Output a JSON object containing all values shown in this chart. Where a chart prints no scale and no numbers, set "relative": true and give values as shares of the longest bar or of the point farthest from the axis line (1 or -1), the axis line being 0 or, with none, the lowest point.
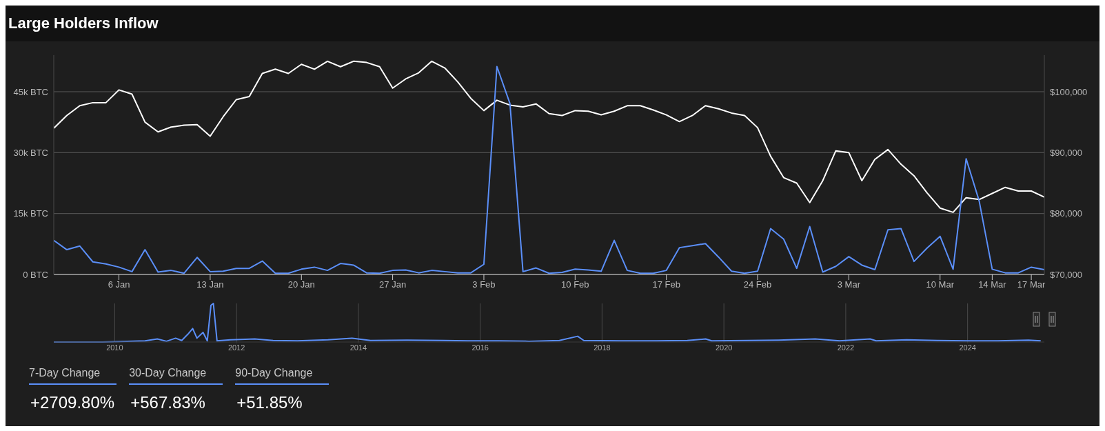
{
  "chart_data": [
    {
      "type": "line",
      "title": "Large Holders Inflow",
      "x": [
        "--01-01",
        "--01-02",
        "--01-03",
        "--01-04",
        "--01-05",
        "--01-06",
        "--01-07",
        "--01-08",
        "--01-09",
        "--01-10",
        "--01-11",
        "--01-12",
        "--01-13",
        "--01-14",
        "--01-15",
        "--01-16",
        "--01-17",
        "--01-18",
        "--01-19",
        "--01-20",
        "--01-21",
        "--01-22",
        "--01-23",
        "--01-24",
        "--01-25",
        "--01-26",
        "--01-27",
        "--01-28",
        "--01-29",
        "--01-30",
        "--01-31",
        "--02-01",
        "--02-02",
        "--02-03",
        "--02-04",
        "--02-05",
        "--02-06",
        "--02-07",
        "--02-08",
        "--02-09",
        "--02-10",
        "--02-11",
        "--02-12",
        "--02-13",
        "--02-14",
        "--02-15",
        "--02-16",
        "--02-17",
        "--02-18",
        "--02-19",
        "--02-20",
        "--02-21",
        "--02-22",
        "--02-23",
        "--02-24",
        "--02-25",
        "--02-26",
        "--02-27",
        "--02-28",
        "--03-01",
        "--03-02",
        "--03-03",
        "--03-04",
        "--03-05",
        "--03-06",
        "--03-07",
        "--03-08",
        "--03-09",
        "--03-10",
        "--03-11",
        "--03-12",
        "--03-13",
        "--03-14",
        "--03-15",
        "--03-16",
        "--03-17",
        "--03-18"
      ],
      "series": [
        {
          "color": "#ffffff",
          "axis": "y2",
          "values": [
            94000,
            96100,
            97700,
            98200,
            98200,
            100300,
            99600,
            95000,
            93400,
            94200,
            94500,
            94600,
            92700,
            95900,
            98700,
            99200,
            103000,
            103700,
            103000,
            104500,
            103700,
            105000,
            104100,
            105000,
            104800,
            104100,
            100600,
            102100,
            103100,
            105000,
            103900,
            101600,
            98900,
            96900,
            98600,
            97800,
            97500,
            98000,
            96400,
            96100,
            96900,
            96800,
            96200,
            96800,
            97700,
            97700,
            97000,
            96200,
            95100,
            96100,
            97700,
            97200,
            96500,
            96100,
            94100,
            89400,
            85900,
            85000,
            81800,
            85400,
            90300,
            90000,
            85400,
            88900,
            90500,
            88100,
            86200,
            83400,
            80900,
            80200,
            82600,
            82300,
            83300,
            84300,
            83700,
            83700,
            82700
          ]
        },
        {
          "color": "#5b8ff9",
          "values": [
            8400,
            6100,
            7000,
            3100,
            2600,
            1800,
            700,
            6100,
            600,
            1000,
            300,
            4200,
            700,
            800,
            1500,
            1500,
            3300,
            300,
            300,
            1300,
            1800,
            1000,
            2700,
            2300,
            400,
            300,
            1000,
            1100,
            400,
            1000,
            700,
            400,
            400,
            2500,
            51200,
            42100,
            700,
            1600,
            300,
            500,
            1300,
            1100,
            800,
            8400,
            1000,
            300,
            300,
            1000,
            6600,
            7100,
            7600,
            4300,
            800,
            300,
            800,
            11300,
            8700,
            1500,
            11800,
            600,
            2000,
            4400,
            2300,
            1200,
            11000,
            11300,
            3200,
            6500,
            9400,
            1300,
            28500,
            18100,
            1300,
            400,
            400,
            1800,
            1200
          ]
        }
      ],
      "xlim": [
        "--01-01",
        "--03-18"
      ],
      "xticks": [
        {
          "value": "--01-06",
          "label": "6 Jan"
        },
        {
          "value": "--01-13",
          "label": "13 Jan"
        },
        {
          "value": "--01-20",
          "label": "20 Jan"
        },
        {
          "value": "--01-27",
          "label": "27 Jan"
        },
        {
          "value": "--02-03",
          "label": "3 Feb"
        },
        {
          "value": "--02-10",
          "label": "10 Feb"
        },
        {
          "value": "--02-17",
          "label": "17 Feb"
        },
        {
          "value": "--02-24",
          "label": "24 Feb"
        },
        {
          "value": "--03-03",
          "label": "3 Mar"
        },
        {
          "value": "--03-10",
          "label": "10 Mar"
        },
        {
          "value": "--03-14",
          "label": "14 Mar"
        },
        {
          "value": "--03-17",
          "label": "17 Mar"
        }
      ],
      "ylim": [
        0,
        54000
      ],
      "yticks": [
        {
          "value": 0,
          "label": "0 BTC"
        },
        {
          "value": 15000,
          "label": "15k BTC"
        },
        {
          "value": 30000,
          "label": "30k BTC"
        },
        {
          "value": 45000,
          "label": "45k BTC"
        }
      ],
      "y2lim": [
        70000,
        106000
      ],
      "y2ticks": [
        {
          "value": 70000,
          "label": "$70,000"
        },
        {
          "value": 80000,
          "label": "$80,000"
        },
        {
          "value": 90000,
          "label": "$90,000"
        },
        {
          "value": 100000,
          "label": "$100,000"
        }
      ],
      "grid": "y",
      "marker": "none",
      "line_style": "solid"
    },
    {
      "type": "line",
      "relative": true,
      "tick_labels": "x",
      "grid": "x",
      "marker": "none",
      "x": [
        2009.0,
        2009.8,
        2010.2,
        2010.5,
        2010.7,
        2010.85,
        2011.0,
        2011.1,
        2011.2,
        2011.28,
        2011.35,
        2011.45,
        2011.52,
        2011.58,
        2011.62,
        2011.68,
        2011.9,
        2012.3,
        2012.6,
        2013.0,
        2013.5,
        2013.9,
        2014.2,
        2014.8,
        2015.4,
        2015.8,
        2016.3,
        2016.8,
        2017.3,
        2017.6,
        2017.7,
        2018.3,
        2018.9,
        2019.4,
        2019.7,
        2019.8,
        2020.4,
        2020.9,
        2021.5,
        2021.9,
        2022.4,
        2022.5,
        2023.0,
        2023.5,
        2024.0,
        2024.5,
        2025.0,
        2025.2
      ],
      "series": [
        {
          "color": "#5b8ff9",
          "values": [
            0,
            0,
            0.02,
            0.03,
            0.08,
            0.02,
            0.1,
            0.04,
            0.2,
            0.35,
            0.1,
            0.25,
            0.03,
            0.95,
            1,
            0.03,
            0.06,
            0.08,
            0.04,
            0.03,
            0.06,
            0.1,
            0.04,
            0.05,
            0.04,
            0.03,
            0.03,
            0.02,
            0.04,
            0.15,
            0.04,
            0.03,
            0.03,
            0.04,
            0.08,
            0.03,
            0.04,
            0.05,
            0.08,
            0.03,
            0.08,
            0.03,
            0.06,
            0.04,
            0.03,
            0.03,
            0.05,
            0.03
          ]
        }
      ],
      "xlim": [
        2009,
        2025.26
      ],
      "xticks": [
        2010,
        2012,
        2014,
        2016,
        2018,
        2020,
        2022,
        2024
      ]
    },
    {
      "type": "other",
      "annotations": [
        "7-Day Change",
        "+2709.80%",
        "30-Day Change",
        "+567.83%",
        "90-Day Change",
        "+51.85%"
      ]
    }
  ]
}
